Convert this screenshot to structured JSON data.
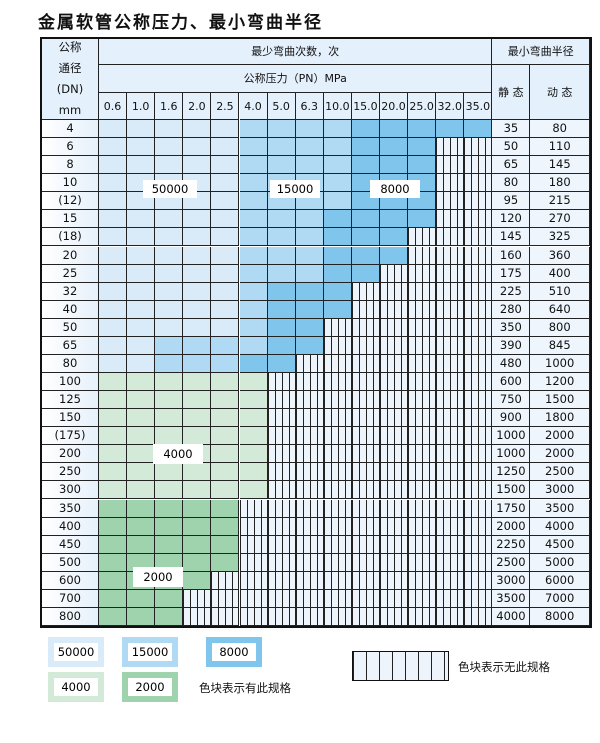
{
  "title": "金属软管公称压力、最小弯曲半径",
  "header": {
    "dn_label_lines": [
      "公称",
      "通径",
      "(DN)",
      "mm"
    ],
    "cycles_label": "最少弯曲次数，次",
    "pressure_label": "公称压力（PN）MPa",
    "radius_label": "最小弯曲半径",
    "static_label": "静 态",
    "dynamic_label": "动 态",
    "pressures": [
      "0.6",
      "1.0",
      "1.6",
      "2.0",
      "2.5",
      "4.0",
      "5.0",
      "6.3",
      "10.0",
      "15.0",
      "20.0",
      "25.0",
      "32.0",
      "35.0"
    ]
  },
  "levels": {
    "a": {
      "label": "50000",
      "color": "#d9ebf9"
    },
    "b": {
      "label": "15000",
      "color": "#b0d9f3"
    },
    "c": {
      "label": "8000",
      "color": "#80c5ec"
    },
    "d": {
      "label": "4000",
      "color": "#d4ead8"
    },
    "e": {
      "label": "2000",
      "color": "#9fd3ae"
    }
  },
  "rows": [
    {
      "dn": "4",
      "fill": "aaaaabbbbccccc",
      "static": "35",
      "dynamic": "80"
    },
    {
      "dn": "6",
      "fill": "aaaaabbbbccc--",
      "static": "50",
      "dynamic": "110"
    },
    {
      "dn": "8",
      "fill": "aaaaabbbbccc--",
      "static": "65",
      "dynamic": "145"
    },
    {
      "dn": "10",
      "fill": "aaaaabbbbccc--",
      "static": "80",
      "dynamic": "180"
    },
    {
      "dn": "(12)",
      "fill": "aaaaabbbbccc--",
      "static": "95",
      "dynamic": "215"
    },
    {
      "dn": "15",
      "fill": "aaaaabbbcccc--",
      "static": "120",
      "dynamic": "270"
    },
    {
      "dn": "(18)",
      "fill": "aaaaabbbccc---",
      "static": "145",
      "dynamic": "325"
    },
    {
      "dn": "20",
      "fill": "aaaaabbbccc---",
      "static": "160",
      "dynamic": "360"
    },
    {
      "dn": "25",
      "fill": "aaaaabbbcc----",
      "static": "175",
      "dynamic": "400"
    },
    {
      "dn": "32",
      "fill": "aaaaabccc-----",
      "static": "225",
      "dynamic": "510"
    },
    {
      "dn": "40",
      "fill": "aaaaabccc-----",
      "static": "280",
      "dynamic": "640"
    },
    {
      "dn": "50",
      "fill": "aaaaabcc------",
      "static": "350",
      "dynamic": "800"
    },
    {
      "dn": "65",
      "fill": "aabbbbcc------",
      "static": "390",
      "dynamic": "845"
    },
    {
      "dn": "80",
      "fill": "aabbbcc-------",
      "static": "480",
      "dynamic": "1000"
    },
    {
      "dn": "100",
      "fill": "dddddd--------",
      "static": "600",
      "dynamic": "1200"
    },
    {
      "dn": "125",
      "fill": "dddddd--------",
      "static": "750",
      "dynamic": "1500"
    },
    {
      "dn": "150",
      "fill": "dddddd--------",
      "static": "900",
      "dynamic": "1800"
    },
    {
      "dn": "(175)",
      "fill": "dddddd--------",
      "static": "1000",
      "dynamic": "2000"
    },
    {
      "dn": "200",
      "fill": "dddddd--------",
      "static": "1000",
      "dynamic": "2000"
    },
    {
      "dn": "250",
      "fill": "dddddd--------",
      "static": "1250",
      "dynamic": "2500"
    },
    {
      "dn": "300",
      "fill": "dddddd--------",
      "static": "1500",
      "dynamic": "3000"
    },
    {
      "dn": "350",
      "fill": "eeeee---------",
      "static": "1750",
      "dynamic": "3500"
    },
    {
      "dn": "400",
      "fill": "eeeee---------",
      "static": "2000",
      "dynamic": "4000"
    },
    {
      "dn": "450",
      "fill": "eeeee---------",
      "static": "2250",
      "dynamic": "4500"
    },
    {
      "dn": "500",
      "fill": "eeeee---------",
      "static": "2500",
      "dynamic": "5000"
    },
    {
      "dn": "600",
      "fill": "eeee----------",
      "static": "3000",
      "dynamic": "6000"
    },
    {
      "dn": "700",
      "fill": "eee-----------",
      "static": "3500",
      "dynamic": "7000"
    },
    {
      "dn": "800",
      "fill": "eee-----------",
      "static": "4000",
      "dynamic": "8000"
    }
  ],
  "zone_labels": {
    "a": "50000",
    "b": "15000",
    "c": "8000",
    "d": "4000",
    "e": "2000"
  },
  "legend": {
    "items": [
      "50000",
      "15000",
      "8000",
      "4000",
      "2000"
    ],
    "has_spec_text": "色块表示有此规格",
    "no_spec_text": "色块表示无此规格"
  }
}
